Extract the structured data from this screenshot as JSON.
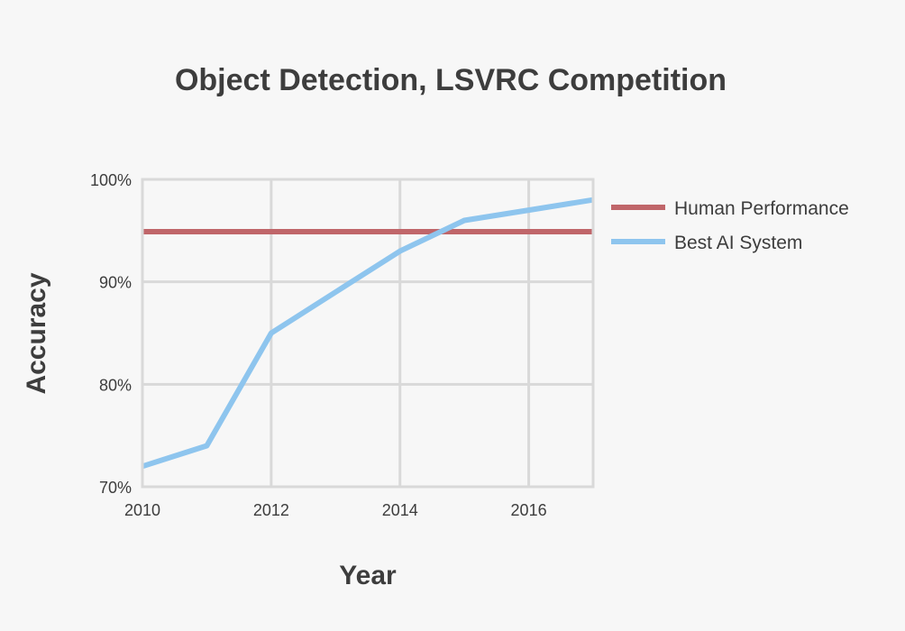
{
  "chart_data": {
    "type": "line",
    "title": "Object Detection, LSVRC Competition",
    "xlabel": "Year",
    "ylabel": "Accuracy",
    "xlim": [
      2010,
      2017
    ],
    "ylim": [
      70,
      100
    ],
    "x_ticks": [
      2010,
      2012,
      2014,
      2016
    ],
    "y_ticks": [
      70,
      80,
      90,
      100
    ],
    "y_tick_suffix": "%",
    "grid": true,
    "legend_position": "right",
    "series": [
      {
        "name": "Human Performance",
        "color": "#c0666a",
        "x": [
          2010,
          2017
        ],
        "y": [
          94.9,
          94.9
        ]
      },
      {
        "name": "Best AI System",
        "color": "#8ec5ee",
        "x": [
          2010,
          2011,
          2012,
          2013,
          2014,
          2015,
          2016,
          2017
        ],
        "y": [
          72,
          74,
          85,
          89,
          93,
          96,
          97,
          98
        ]
      }
    ]
  }
}
